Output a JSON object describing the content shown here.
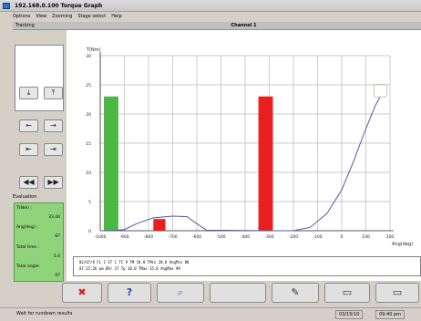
{
  "window": {
    "title": "192.168.0.100 Torque Graph"
  },
  "menu": [
    "Options",
    "View",
    "Zooming",
    "Stage select",
    "Help"
  ],
  "left_header": "Tracking",
  "chart_header": "Channel 1",
  "evaluation": {
    "title": "Evaluation",
    "lines": [
      "T(Nm) :",
      "33.44",
      "Ang(deg) :",
      "87",
      "Total time :",
      "5.4",
      "Total angle:",
      "97"
    ]
  },
  "info_lines": [
    "02/07/8     FL  1   ST  1   TI  9   TM 18.0    TMin 20.0  AngMin  80",
    "07:15:26 pm 09/   37            Tp 10.0    TMax 35.0  AngMax  99"
  ],
  "toolbar_icons": [
    "close-x-icon",
    "help-icon",
    "zoom-icon",
    "blank",
    "pen-icon",
    "window-icon",
    "window-icon"
  ],
  "status": {
    "message": "Wait for rundown results",
    "date": "03/15/10",
    "time": "09:40 pm"
  },
  "chart_data": {
    "type": "line",
    "ylabel": "T(Nm)",
    "xlabel": "Ang(deg)",
    "x_ticks": [
      -1000,
      -900,
      -800,
      -700,
      -600,
      -500,
      -400,
      -300,
      -200,
      -100,
      0,
      100,
      200
    ],
    "x_tick_labels": [
      "-1000",
      "-900",
      "-800",
      "-700",
      "-600",
      "-500",
      "-400",
      "-300",
      "-200",
      "-100",
      "0",
      "100",
      "200"
    ],
    "y_ticks": [
      0,
      5,
      10,
      15,
      20,
      25,
      30
    ],
    "y_tick_labels": [
      "0",
      "5",
      "10",
      "15",
      "20",
      "25",
      "30"
    ],
    "xlim": [
      -1000,
      200
    ],
    "ylim": [
      0,
      30
    ],
    "bars": [
      {
        "x_from": -985,
        "x_to": -925,
        "top": 23.0,
        "color": "#4bb845"
      },
      {
        "x_from": -780,
        "x_to": -730,
        "top": 2.0,
        "color": "#e82020"
      },
      {
        "x_from": -345,
        "x_to": -285,
        "top": 23.0,
        "color": "#e82020"
      }
    ],
    "series": [
      {
        "color": "#5555b5",
        "points": [
          [
            -1000,
            0
          ],
          [
            -960,
            0
          ],
          [
            -900,
            0.2
          ],
          [
            -850,
            1.2
          ],
          [
            -780,
            2.2
          ],
          [
            -700,
            2.5
          ],
          [
            -640,
            2.4
          ],
          [
            -600,
            1.2
          ],
          [
            -560,
            0.1
          ],
          [
            -300,
            0
          ],
          [
            -200,
            0
          ],
          [
            -130,
            0.6
          ],
          [
            -60,
            3
          ],
          [
            0,
            7
          ],
          [
            50,
            12
          ],
          [
            100,
            17.5
          ],
          [
            140,
            21.5
          ],
          [
            160,
            23
          ]
        ]
      }
    ],
    "marker": {
      "x": 160,
      "y": 24
    }
  }
}
